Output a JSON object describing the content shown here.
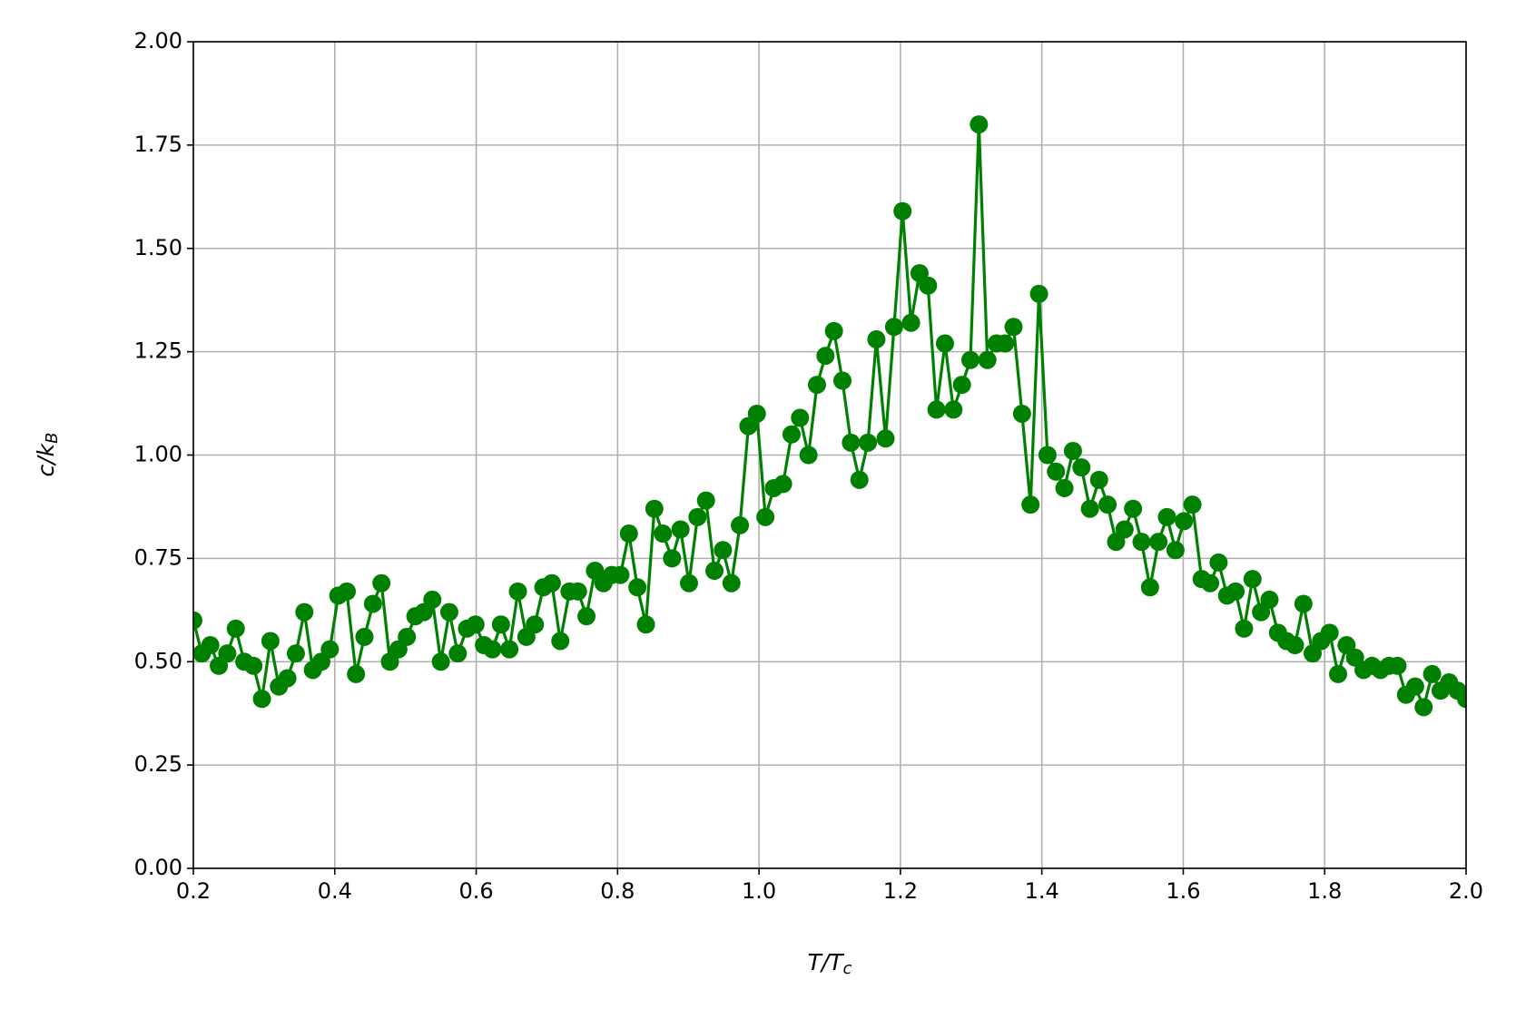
{
  "chart_data": {
    "type": "line",
    "xlabel": [
      "T/T",
      "c"
    ],
    "ylabel": [
      "c/k",
      "B"
    ],
    "x": [
      0.2,
      0.212,
      0.224,
      0.236,
      0.248,
      0.26,
      0.272,
      0.285,
      0.297,
      0.309,
      0.321,
      0.333,
      0.345,
      0.357,
      0.369,
      0.381,
      0.393,
      0.405,
      0.417,
      0.43,
      0.442,
      0.454,
      0.466,
      0.478,
      0.49,
      0.502,
      0.514,
      0.526,
      0.538,
      0.55,
      0.562,
      0.574,
      0.587,
      0.599,
      0.611,
      0.623,
      0.635,
      0.647,
      0.659,
      0.671,
      0.683,
      0.695,
      0.707,
      0.719,
      0.732,
      0.744,
      0.756,
      0.768,
      0.78,
      0.792,
      0.804,
      0.816,
      0.828,
      0.84,
      0.852,
      0.864,
      0.877,
      0.889,
      0.901,
      0.913,
      0.925,
      0.937,
      0.949,
      0.961,
      0.973,
      0.985,
      0.997,
      1.009,
      1.021,
      1.034,
      1.046,
      1.058,
      1.07,
      1.082,
      1.094,
      1.106,
      1.118,
      1.13,
      1.142,
      1.154,
      1.166,
      1.179,
      1.191,
      1.203,
      1.215,
      1.227,
      1.239,
      1.251,
      1.263,
      1.275,
      1.287,
      1.299,
      1.311,
      1.323,
      1.336,
      1.348,
      1.36,
      1.372,
      1.384,
      1.396,
      1.408,
      1.42,
      1.432,
      1.444,
      1.456,
      1.468,
      1.481,
      1.493,
      1.505,
      1.517,
      1.529,
      1.541,
      1.553,
      1.565,
      1.577,
      1.589,
      1.601,
      1.613,
      1.626,
      1.638,
      1.65,
      1.662,
      1.674,
      1.686,
      1.698,
      1.71,
      1.722,
      1.734,
      1.746,
      1.758,
      1.77,
      1.783,
      1.795,
      1.807,
      1.819,
      1.831,
      1.843,
      1.855,
      1.867,
      1.879,
      1.891,
      1.903,
      1.915,
      1.928,
      1.94,
      1.952,
      1.964,
      1.976,
      1.988,
      2.0
    ],
    "series": [
      {
        "color": "#008000",
        "values": [
          0.6,
          0.52,
          0.54,
          0.49,
          0.52,
          0.58,
          0.5,
          0.49,
          0.41,
          0.55,
          0.44,
          0.46,
          0.52,
          0.62,
          0.48,
          0.5,
          0.53,
          0.66,
          0.67,
          0.47,
          0.56,
          0.64,
          0.69,
          0.5,
          0.53,
          0.56,
          0.61,
          0.62,
          0.65,
          0.5,
          0.62,
          0.52,
          0.58,
          0.59,
          0.54,
          0.53,
          0.59,
          0.53,
          0.67,
          0.56,
          0.59,
          0.68,
          0.69,
          0.55,
          0.67,
          0.67,
          0.61,
          0.72,
          0.69,
          0.71,
          0.71,
          0.81,
          0.68,
          0.59,
          0.87,
          0.81,
          0.75,
          0.82,
          0.69,
          0.85,
          0.89,
          0.72,
          0.77,
          0.69,
          0.83,
          1.07,
          1.1,
          0.85,
          0.92,
          0.93,
          1.05,
          1.09,
          1.0,
          1.17,
          1.24,
          1.3,
          1.18,
          1.03,
          0.94,
          1.03,
          1.28,
          1.04,
          1.31,
          1.59,
          1.32,
          1.44,
          1.41,
          1.11,
          1.27,
          1.11,
          1.17,
          1.23,
          1.8,
          1.23,
          1.27,
          1.27,
          1.31,
          1.1,
          0.88,
          1.39,
          1.0,
          0.96,
          0.92,
          1.01,
          0.97,
          0.87,
          0.94,
          0.88,
          0.79,
          0.82,
          0.87,
          0.79,
          0.68,
          0.79,
          0.85,
          0.77,
          0.84,
          0.88,
          0.7,
          0.69,
          0.74,
          0.66,
          0.67,
          0.58,
          0.7,
          0.62,
          0.65,
          0.57,
          0.55,
          0.54,
          0.64,
          0.52,
          0.55,
          0.57,
          0.47,
          0.54,
          0.51,
          0.48,
          0.49,
          0.48,
          0.49,
          0.49,
          0.42,
          0.44,
          0.39,
          0.47,
          0.43,
          0.45,
          0.43,
          0.41
        ]
      }
    ],
    "xlim": [
      0.2,
      2.0
    ],
    "ylim": [
      0,
      2
    ],
    "xticks": [
      0.2,
      0.4,
      0.6,
      0.8,
      {
        "value": 1,
        "label": "1.0"
      },
      1.2,
      1.4,
      1.6,
      1.8,
      {
        "value": 2,
        "label": "2.0"
      }
    ],
    "yticks": [
      {
        "value": 0,
        "label": "0.00"
      },
      {
        "value": 0.25,
        "label": "0.25"
      },
      {
        "value": 0.5,
        "label": "0.50"
      },
      {
        "value": 0.75,
        "label": "0.75"
      },
      {
        "value": 1,
        "label": "1.00"
      },
      {
        "value": 1.25,
        "label": "1.25"
      },
      {
        "value": 1.5,
        "label": "1.50"
      },
      {
        "value": 1.75,
        "label": "1.75"
      },
      {
        "value": 2,
        "label": "2.00"
      }
    ],
    "grid": true
  }
}
